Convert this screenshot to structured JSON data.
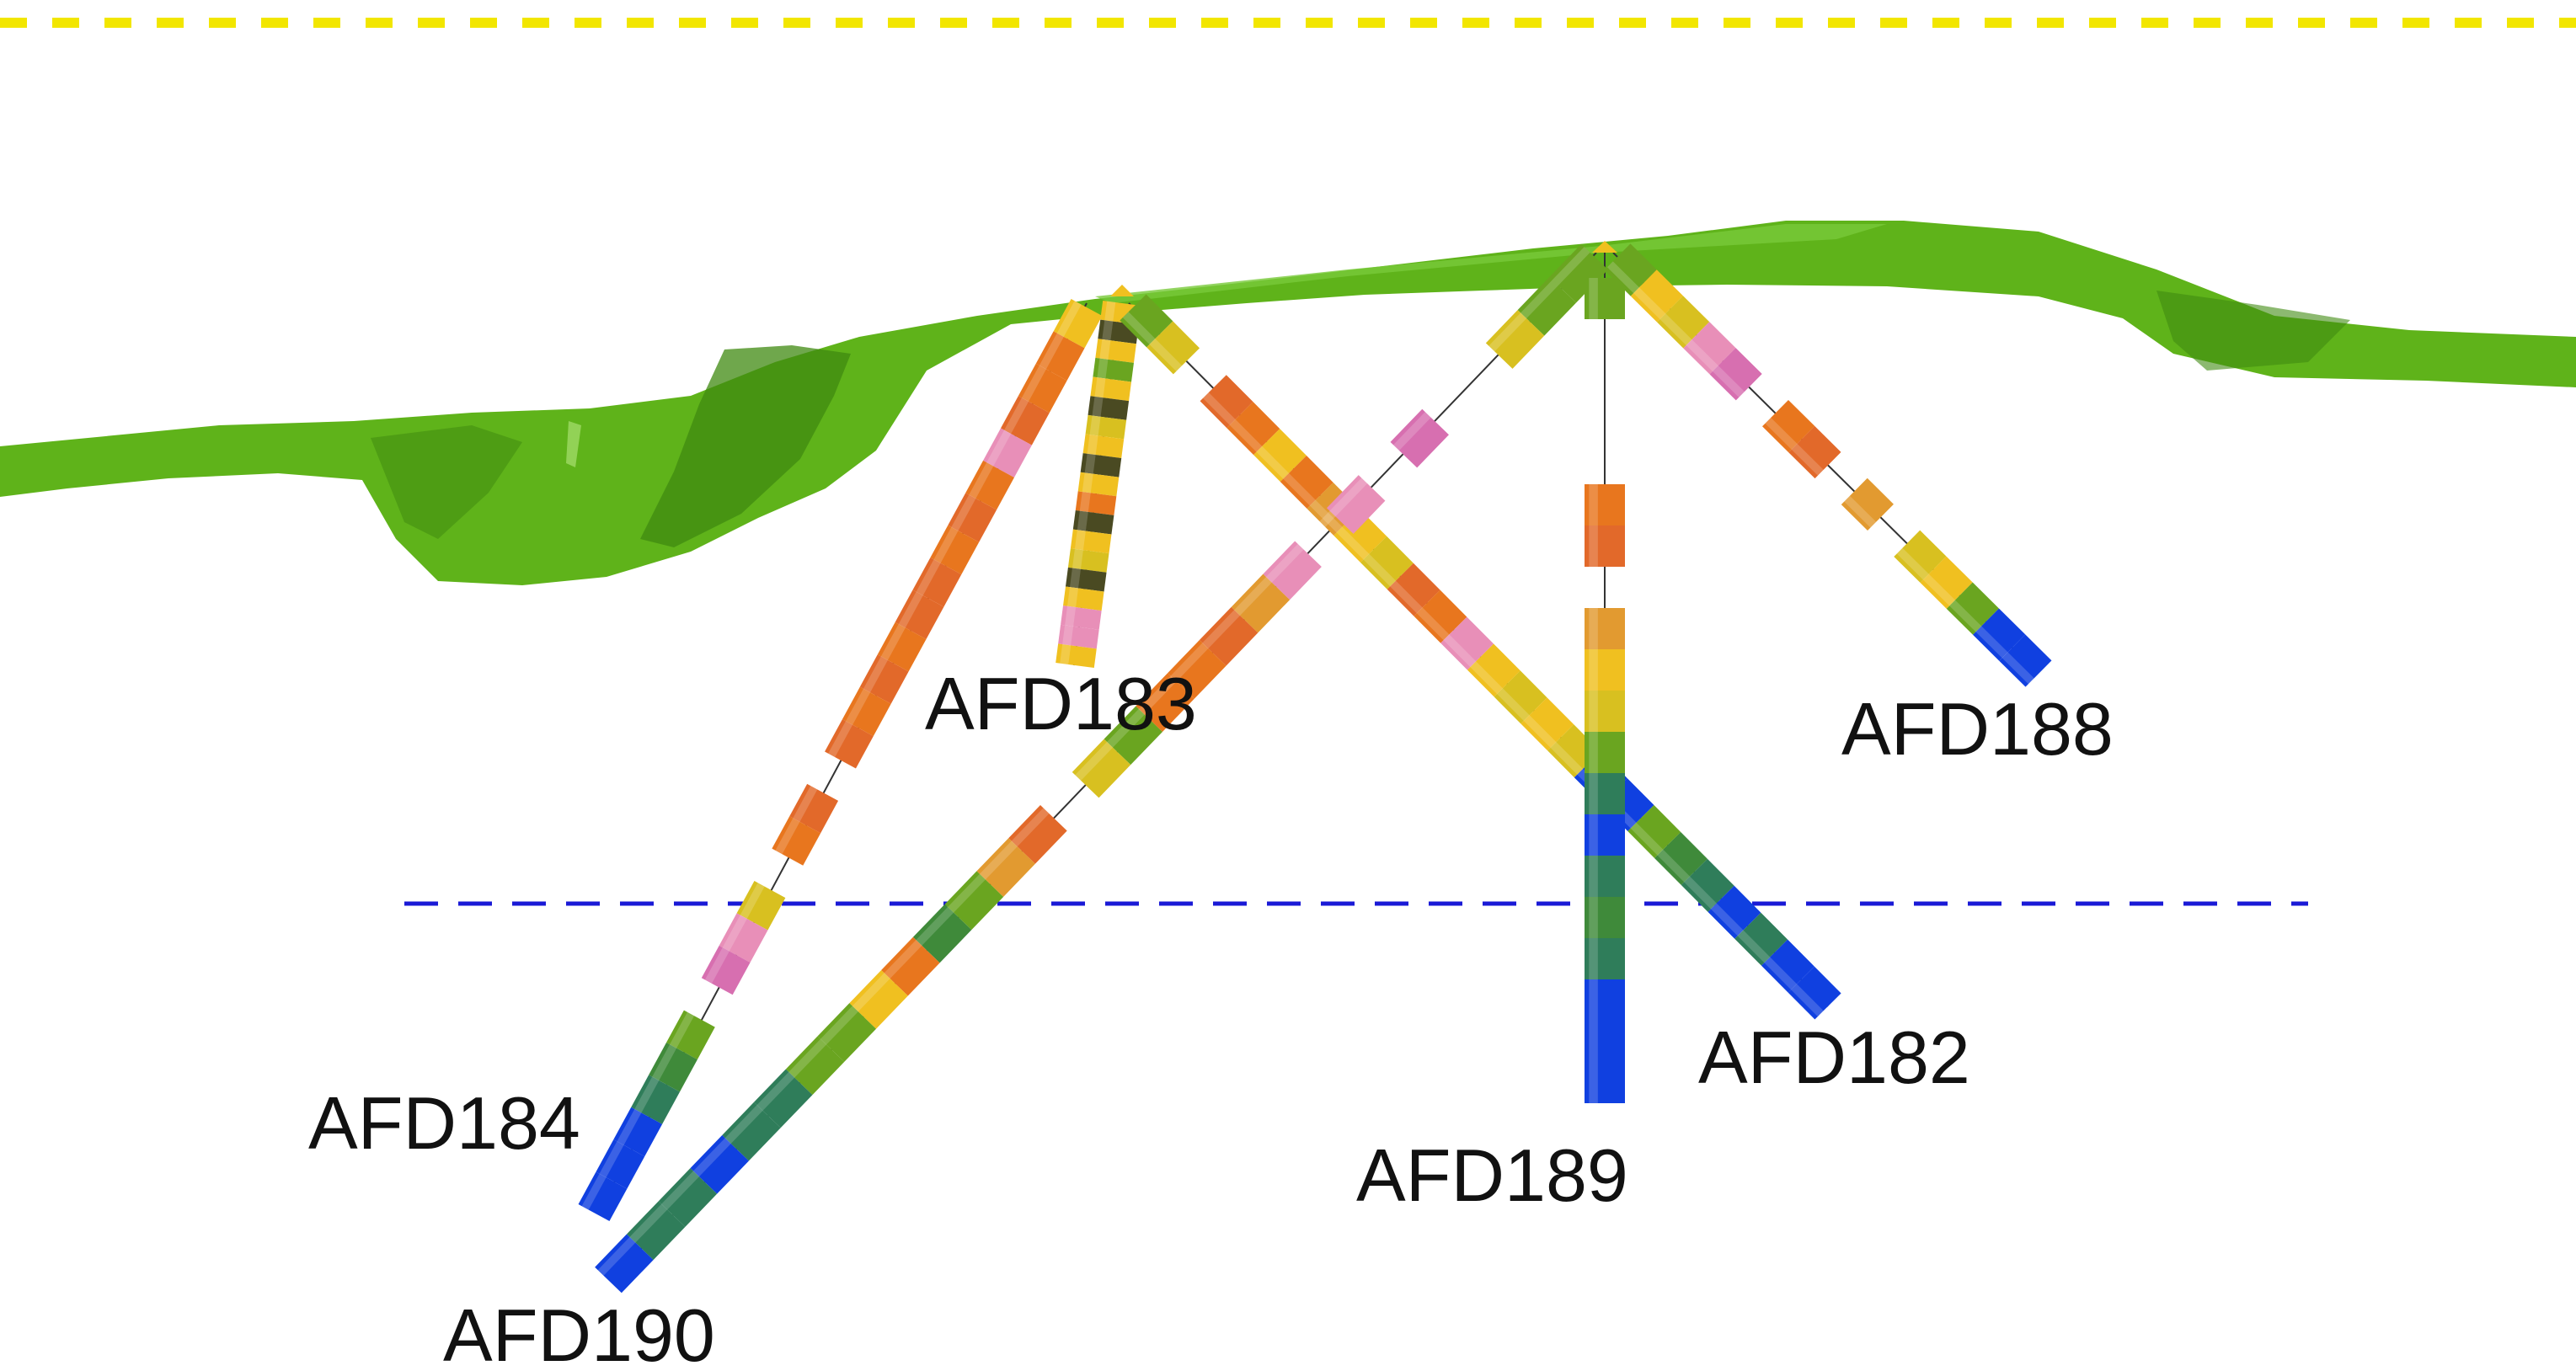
{
  "colors": {
    "background": "#ffffff",
    "surface": "#5fb31a",
    "surface_shade": "#3f8a10",
    "upper_reference_line": "#f2e600",
    "lower_reference_line": "#1a1ad6",
    "trace_line": "#333333",
    "lithology": [
      "#f0c020",
      "#e8761e",
      "#e2692a",
      "#d8c020",
      "#6aa520",
      "#3f8a3a",
      "#2f7d5a",
      "#e88fb8",
      "#d76fb0",
      "#1040e0",
      "#4a4a22",
      "#e29a30"
    ]
  },
  "drillholes": [
    {
      "id": "AFD182",
      "label": "AFD182"
    },
    {
      "id": "AFD183",
      "label": "AFD183"
    },
    {
      "id": "AFD184",
      "label": "AFD184"
    },
    {
      "id": "AFD188",
      "label": "AFD188"
    },
    {
      "id": "AFD189",
      "label": "AFD189"
    },
    {
      "id": "AFD190",
      "label": "AFD190"
    }
  ]
}
